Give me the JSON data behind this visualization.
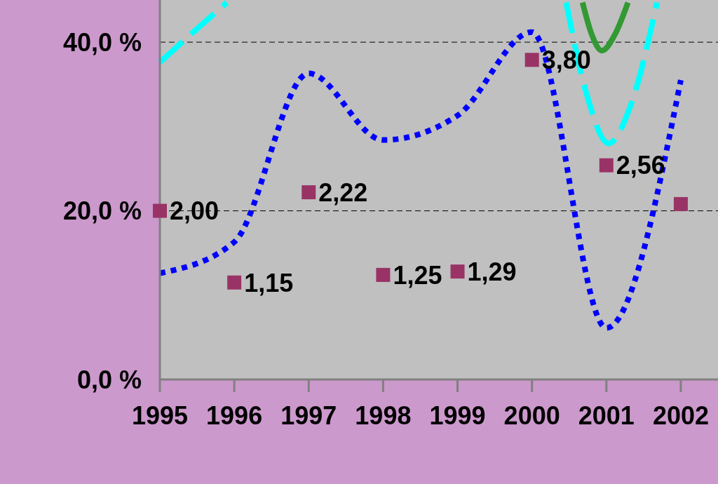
{
  "chart_data": {
    "type": "line",
    "x": [
      1995,
      1996,
      1997,
      1998,
      1999,
      2000,
      2001,
      2002
    ],
    "xlim": [
      1995,
      2002.5
    ],
    "xticks": [
      1995,
      1996,
      1997,
      1998,
      1999,
      2000,
      2001,
      2002
    ],
    "ylim": [
      0,
      45
    ],
    "yticks": [
      {
        "value": 0,
        "label": "0,0 %"
      },
      {
        "value": 20,
        "label": "20,0 %"
      },
      {
        "value": 40,
        "label": "40,0 %"
      }
    ],
    "grid": "y",
    "marker": "none",
    "series": [
      {
        "color": "#0000ff",
        "line_style": "dotted",
        "values": [
          12.6,
          16.3,
          36.3,
          28.4,
          31.3,
          41.2,
          6.1,
          35.5
        ]
      },
      {
        "color": "#00ffff",
        "line_style": "dashed",
        "x": [
          1995,
          1995.45,
          1995.9,
          null,
          2000.46,
          2000.72,
          2001.03,
          2001.33,
          2001.68
        ],
        "values": [
          37.6,
          41.2,
          44.7,
          null,
          44.7,
          34.3,
          28,
          32.6,
          44.7
        ]
      },
      {
        "color": "#339933",
        "line_style": "solid",
        "x": [
          2000.68,
          2000.8,
          2000.94,
          2001.12,
          2001.29
        ],
        "values": [
          44.7,
          41,
          39,
          41,
          44.7
        ]
      },
      {
        "type": "scatter",
        "color": "#993366",
        "marker": "square",
        "values": [
          20,
          11.5,
          22.2,
          12.4,
          12.8,
          37.9,
          25.4,
          20.8
        ]
      }
    ],
    "annotations": [
      {
        "text": "2,00",
        "x": 1995,
        "y": 20
      },
      {
        "text": "1,15",
        "x": 1996,
        "y": 11.5
      },
      {
        "text": "2,22",
        "x": 1997,
        "y": 22.2
      },
      {
        "text": "1,25",
        "x": 1998,
        "y": 12.4
      },
      {
        "text": "1,29",
        "x": 1999,
        "y": 12.8
      },
      {
        "text": "3,80",
        "x": 2000,
        "y": 37.9
      },
      {
        "text": "2,56",
        "x": 2001,
        "y": 25.4
      }
    ]
  }
}
